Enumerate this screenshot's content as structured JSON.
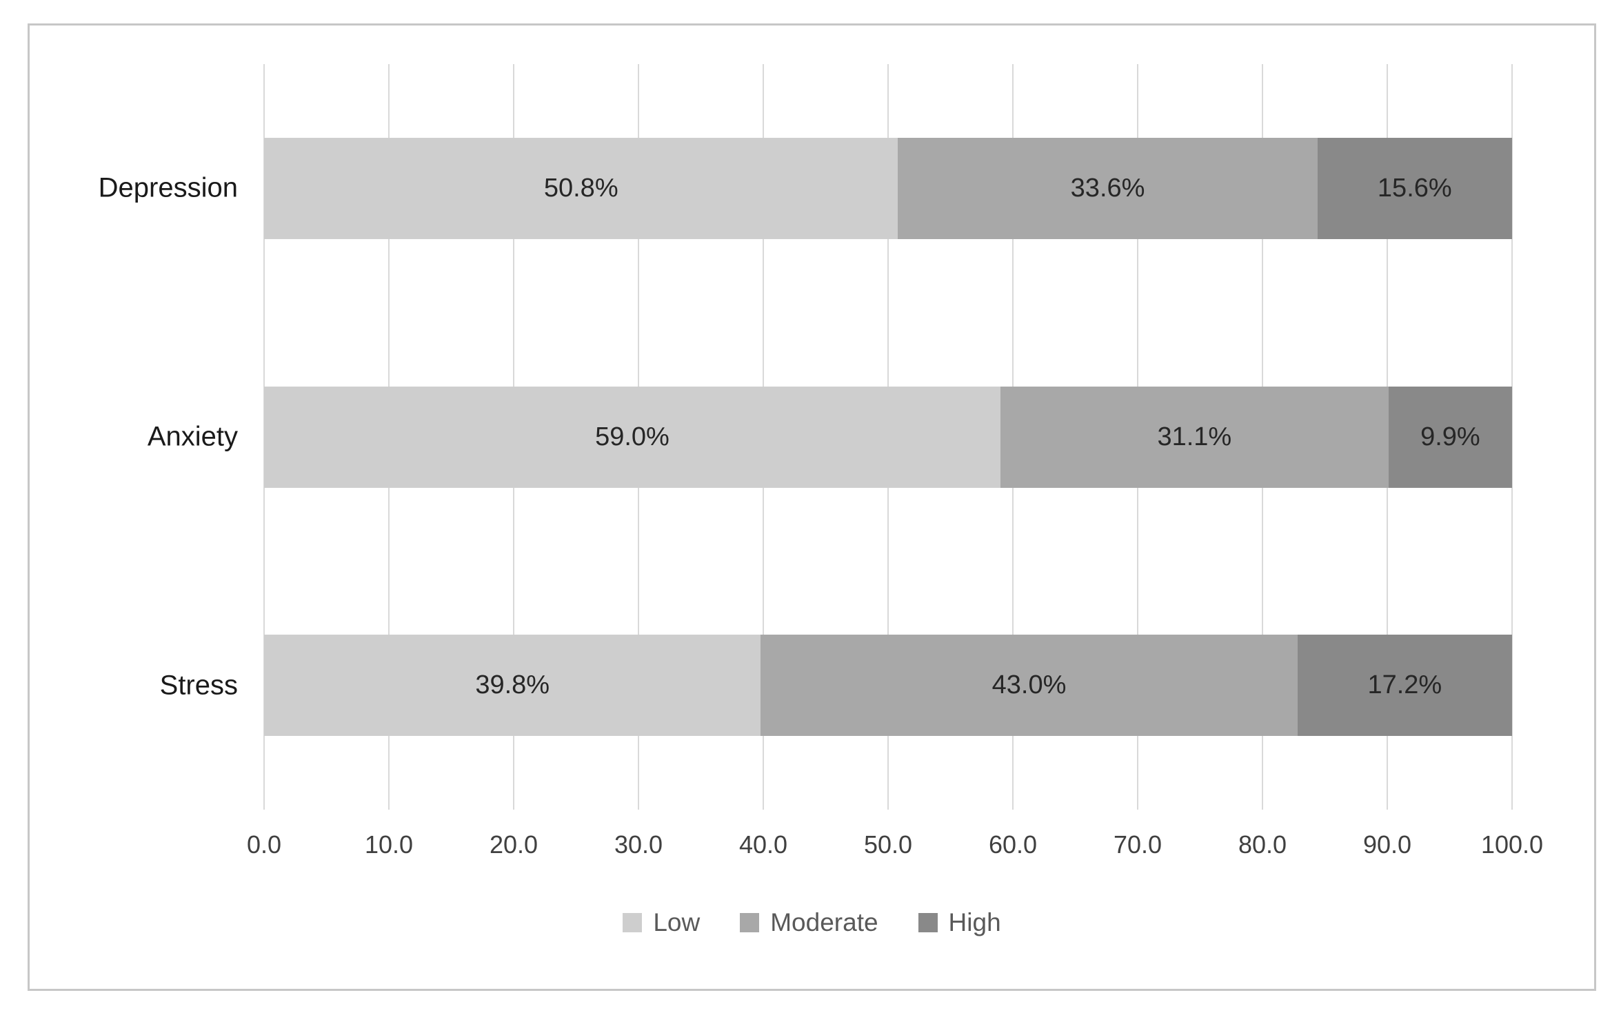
{
  "chart_data": {
    "type": "bar",
    "orientation": "horizontal",
    "stacked": true,
    "title": "",
    "xlabel": "",
    "ylabel": "",
    "xlim": [
      0,
      100
    ],
    "grid": true,
    "categories": [
      "Depression",
      "Anxiety",
      "Stress"
    ],
    "series": [
      {
        "name": "Low",
        "color": "#cecece",
        "values": [
          50.8,
          59.0,
          39.8
        ],
        "labels": [
          "50.8%",
          "59.0%",
          "39.8%"
        ]
      },
      {
        "name": "Moderate",
        "color": "#a8a8a8",
        "values": [
          33.6,
          31.1,
          43.0
        ],
        "labels": [
          "33.6%",
          "31.1%",
          "43.0%"
        ]
      },
      {
        "name": "High",
        "color": "#898989",
        "values": [
          15.6,
          9.9,
          17.2
        ],
        "labels": [
          "15.6%",
          "9.9%",
          "17.2%"
        ]
      }
    ],
    "x_ticks": [
      "0.0",
      "10.0",
      "20.0",
      "30.0",
      "40.0",
      "50.0",
      "60.0",
      "70.0",
      "80.0",
      "90.0",
      "100.0"
    ],
    "legend_position": "bottom",
    "legend": [
      "Low",
      "Moderate",
      "High"
    ]
  },
  "colors": {
    "frame_border": "#c7c7c7",
    "gridline": "#d9d9d9",
    "tick_text": "#404040",
    "category_text": "#1a1a1a",
    "value_text": "#262626",
    "legend_text": "#595959",
    "background": "#ffffff"
  }
}
